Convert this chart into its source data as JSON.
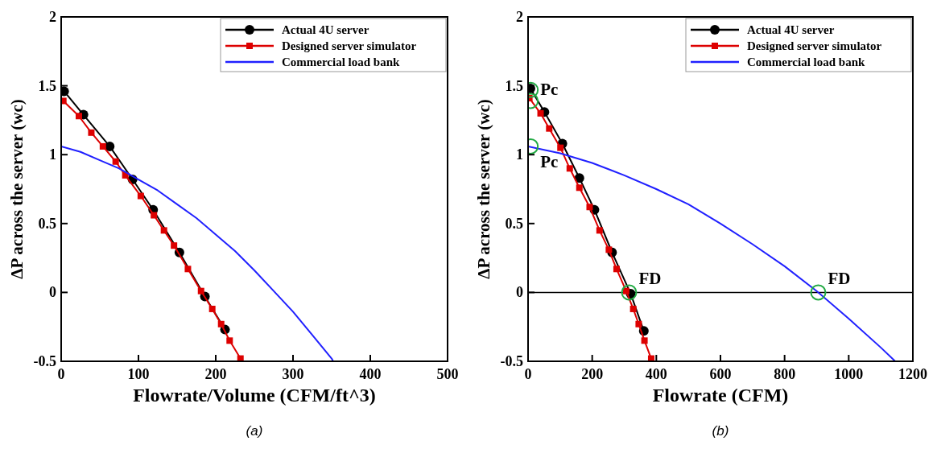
{
  "chart_data": [
    {
      "type": "line",
      "xlabel": "Flowrate/Volume (CFM/ft^3)",
      "ylabel": "ΔP across the server (wc)",
      "xlim": [
        0,
        500
      ],
      "xticks": [
        0,
        100,
        200,
        300,
        400,
        500
      ],
      "ylim": [
        -0.5,
        2
      ],
      "yticks": [
        -0.5,
        0,
        0.5,
        1,
        1.5,
        2
      ],
      "grid": false,
      "legend": "top right",
      "annotations": [
        "(a)"
      ],
      "series": [
        {
          "name": "Actual 4U server",
          "color": "#000000",
          "marker": "circle",
          "x": [
            3.8,
            28.8,
            62.8,
            92.4,
            119,
            153,
            186,
            212
          ],
          "values": [
            1.46,
            1.29,
            1.06,
            0.82,
            0.6,
            0.29,
            -0.03,
            -0.27
          ]
        },
        {
          "name": "Designed server simulator",
          "color": "#dd0000",
          "marker": "square",
          "x": [
            2.8,
            22.9,
            39,
            54,
            70.5,
            83,
            103,
            120,
            133,
            146,
            164,
            181,
            195.5,
            207,
            218,
            232
          ],
          "values": [
            1.39,
            1.28,
            1.16,
            1.06,
            0.95,
            0.85,
            0.7,
            0.56,
            0.45,
            0.34,
            0.17,
            0.01,
            -0.12,
            -0.23,
            -0.35,
            -0.48
          ]
        },
        {
          "name": "Commercial load bank",
          "color": "#2020ff",
          "marker": "none",
          "x": [
            0,
            25,
            50,
            75,
            100,
            125,
            150,
            175,
            200,
            225,
            250,
            275,
            300,
            325,
            350,
            352
          ],
          "values": [
            1.06,
            1.02,
            0.96,
            0.9,
            0.82,
            0.74,
            0.64,
            0.54,
            0.42,
            0.3,
            0.16,
            0.01,
            -0.14,
            -0.31,
            -0.48,
            -0.5
          ]
        }
      ]
    },
    {
      "type": "line",
      "xlabel": "Flowrate (CFM)",
      "ylabel": "ΔP across the server (wc)",
      "xlim": [
        0,
        1200
      ],
      "xticks": [
        0,
        200,
        400,
        600,
        800,
        1000,
        1200
      ],
      "ylim": [
        -0.5,
        2
      ],
      "yticks": [
        -0.5,
        0,
        0.5,
        1,
        1.5,
        2
      ],
      "grid": false,
      "legend": "top right",
      "ref_lines": [
        {
          "axis": "y",
          "value": 0,
          "color": "#000000"
        }
      ],
      "annotations": [
        {
          "text": "Pc",
          "x": 8,
          "y": 1.48
        },
        {
          "text": "Pc",
          "x": 8,
          "y": 1.06
        },
        {
          "text": "FD",
          "x": 315,
          "y": 0
        },
        {
          "text": "FD",
          "x": 905,
          "y": 0
        },
        "(b)"
      ],
      "series": [
        {
          "name": "Actual 4U server",
          "color": "#000000",
          "marker": "circle",
          "x": [
            7.4,
            51,
            107,
            160,
            207,
            262,
            320,
            361
          ],
          "values": [
            1.48,
            1.31,
            1.08,
            0.83,
            0.6,
            0.29,
            -0.01,
            -0.28
          ]
        },
        {
          "name": "Designed server simulator",
          "color": "#dd0000",
          "marker": "square",
          "x": [
            4,
            39,
            66,
            101,
            130,
            160,
            192,
            223,
            252,
            276,
            306,
            328,
            345,
            363,
            384
          ],
          "values": [
            1.41,
            1.3,
            1.19,
            1.05,
            0.9,
            0.76,
            0.62,
            0.45,
            0.31,
            0.17,
            0.01,
            -0.12,
            -0.23,
            -0.35,
            -0.48
          ]
        },
        {
          "name": "Commercial load bank",
          "color": "#2020ff",
          "marker": "none",
          "x": [
            0,
            100,
            200,
            300,
            400,
            500,
            600,
            700,
            800,
            900,
            1000,
            1100,
            1145
          ],
          "values": [
            1.06,
            1.01,
            0.94,
            0.85,
            0.75,
            0.64,
            0.5,
            0.35,
            0.19,
            0.01,
            -0.19,
            -0.4,
            -0.5
          ]
        },
        {
          "type": "scatter",
          "color": "#22aa44",
          "marker": "circle",
          "x": [
            8,
            8,
            8,
            315,
            905
          ],
          "values": [
            1.47,
            1.39,
            1.06,
            0,
            0
          ]
        }
      ]
    }
  ]
}
